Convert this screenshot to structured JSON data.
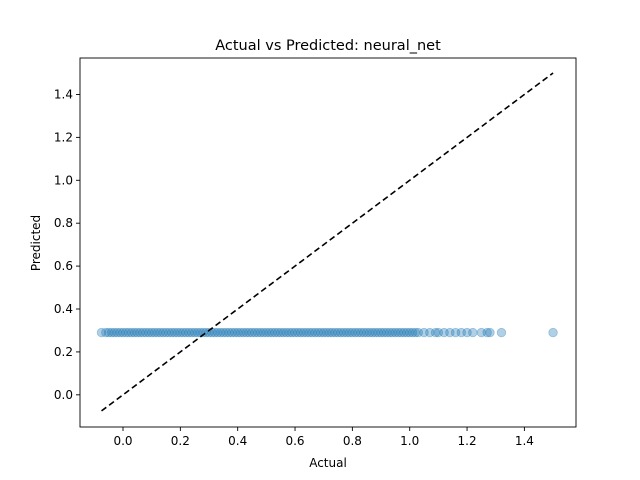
{
  "chart_data": {
    "type": "scatter",
    "title": "Actual vs Predicted: neural_net",
    "xlabel": "Actual",
    "ylabel": "Predicted",
    "xlim": [
      -0.15,
      1.58
    ],
    "ylim": [
      -0.15,
      1.57
    ],
    "xticks": [
      0.0,
      0.2,
      0.4,
      0.6,
      0.8,
      1.0,
      1.2,
      1.4
    ],
    "yticks": [
      0.0,
      0.2,
      0.4,
      0.6,
      0.8,
      1.0,
      1.2,
      1.4
    ],
    "xtick_labels": [
      "0.0",
      "0.2",
      "0.4",
      "0.6",
      "0.8",
      "1.0",
      "1.2",
      "1.4"
    ],
    "ytick_labels": [
      "0.0",
      "0.2",
      "0.4",
      "0.6",
      "0.8",
      "1.0",
      "1.2",
      "1.4"
    ],
    "grid": false,
    "marker_color": "#1f77b4",
    "marker_alpha": 0.35,
    "reference_line": {
      "style": "dashed",
      "color": "#000000",
      "x": [
        -0.075,
        1.5
      ],
      "y": [
        -0.075,
        1.5
      ]
    },
    "series": [
      {
        "x": [
          -0.075,
          -0.06,
          -0.05,
          -0.04,
          -0.03,
          -0.02,
          -0.01,
          0.0,
          0.01,
          0.02,
          0.03,
          0.04,
          0.05,
          0.06,
          0.07,
          0.08,
          0.09,
          0.1,
          0.11,
          0.12,
          0.13,
          0.14,
          0.15,
          0.16,
          0.17,
          0.18,
          0.19,
          0.2,
          0.21,
          0.22,
          0.23,
          0.24,
          0.25,
          0.26,
          0.27,
          0.28,
          0.29,
          0.3,
          0.31,
          0.32,
          0.33,
          0.34,
          0.35,
          0.36,
          0.37,
          0.38,
          0.39,
          0.4,
          0.41,
          0.42,
          0.43,
          0.44,
          0.45,
          0.46,
          0.47,
          0.48,
          0.49,
          0.5,
          0.51,
          0.52,
          0.53,
          0.54,
          0.55,
          0.56,
          0.57,
          0.58,
          0.59,
          0.6,
          0.61,
          0.62,
          0.63,
          0.64,
          0.65,
          0.66,
          0.67,
          0.68,
          0.69,
          0.7,
          0.71,
          0.72,
          0.73,
          0.74,
          0.75,
          0.76,
          0.77,
          0.78,
          0.79,
          0.8,
          0.81,
          0.82,
          0.83,
          0.84,
          0.85,
          0.86,
          0.87,
          0.88,
          0.89,
          0.9,
          0.91,
          0.92,
          0.93,
          0.94,
          0.95,
          0.96,
          0.97,
          0.98,
          0.99,
          1.0,
          1.01,
          1.02,
          1.03,
          1.05,
          1.07,
          1.09,
          1.1,
          1.12,
          1.14,
          1.16,
          1.18,
          1.2,
          1.22,
          1.25,
          1.27,
          1.28,
          1.32,
          1.5
        ],
        "y": [
          0.29,
          0.29,
          0.29,
          0.29,
          0.29,
          0.29,
          0.29,
          0.29,
          0.29,
          0.29,
          0.29,
          0.29,
          0.29,
          0.29,
          0.29,
          0.29,
          0.29,
          0.29,
          0.29,
          0.29,
          0.29,
          0.29,
          0.29,
          0.29,
          0.29,
          0.29,
          0.29,
          0.29,
          0.29,
          0.29,
          0.29,
          0.29,
          0.29,
          0.29,
          0.29,
          0.29,
          0.29,
          0.29,
          0.29,
          0.29,
          0.29,
          0.29,
          0.29,
          0.29,
          0.29,
          0.29,
          0.29,
          0.29,
          0.29,
          0.29,
          0.29,
          0.29,
          0.29,
          0.29,
          0.29,
          0.29,
          0.29,
          0.29,
          0.29,
          0.29,
          0.29,
          0.29,
          0.29,
          0.29,
          0.29,
          0.29,
          0.29,
          0.29,
          0.29,
          0.29,
          0.29,
          0.29,
          0.29,
          0.29,
          0.29,
          0.29,
          0.29,
          0.29,
          0.29,
          0.29,
          0.29,
          0.29,
          0.29,
          0.29,
          0.29,
          0.29,
          0.29,
          0.29,
          0.29,
          0.29,
          0.29,
          0.29,
          0.29,
          0.29,
          0.29,
          0.29,
          0.29,
          0.29,
          0.29,
          0.29,
          0.29,
          0.29,
          0.29,
          0.29,
          0.29,
          0.29,
          0.29,
          0.29,
          0.29,
          0.29,
          0.29,
          0.29,
          0.29,
          0.29,
          0.29,
          0.29,
          0.29,
          0.29,
          0.29,
          0.29,
          0.29,
          0.29,
          0.29,
          0.29,
          0.29,
          0.29
        ]
      }
    ]
  }
}
